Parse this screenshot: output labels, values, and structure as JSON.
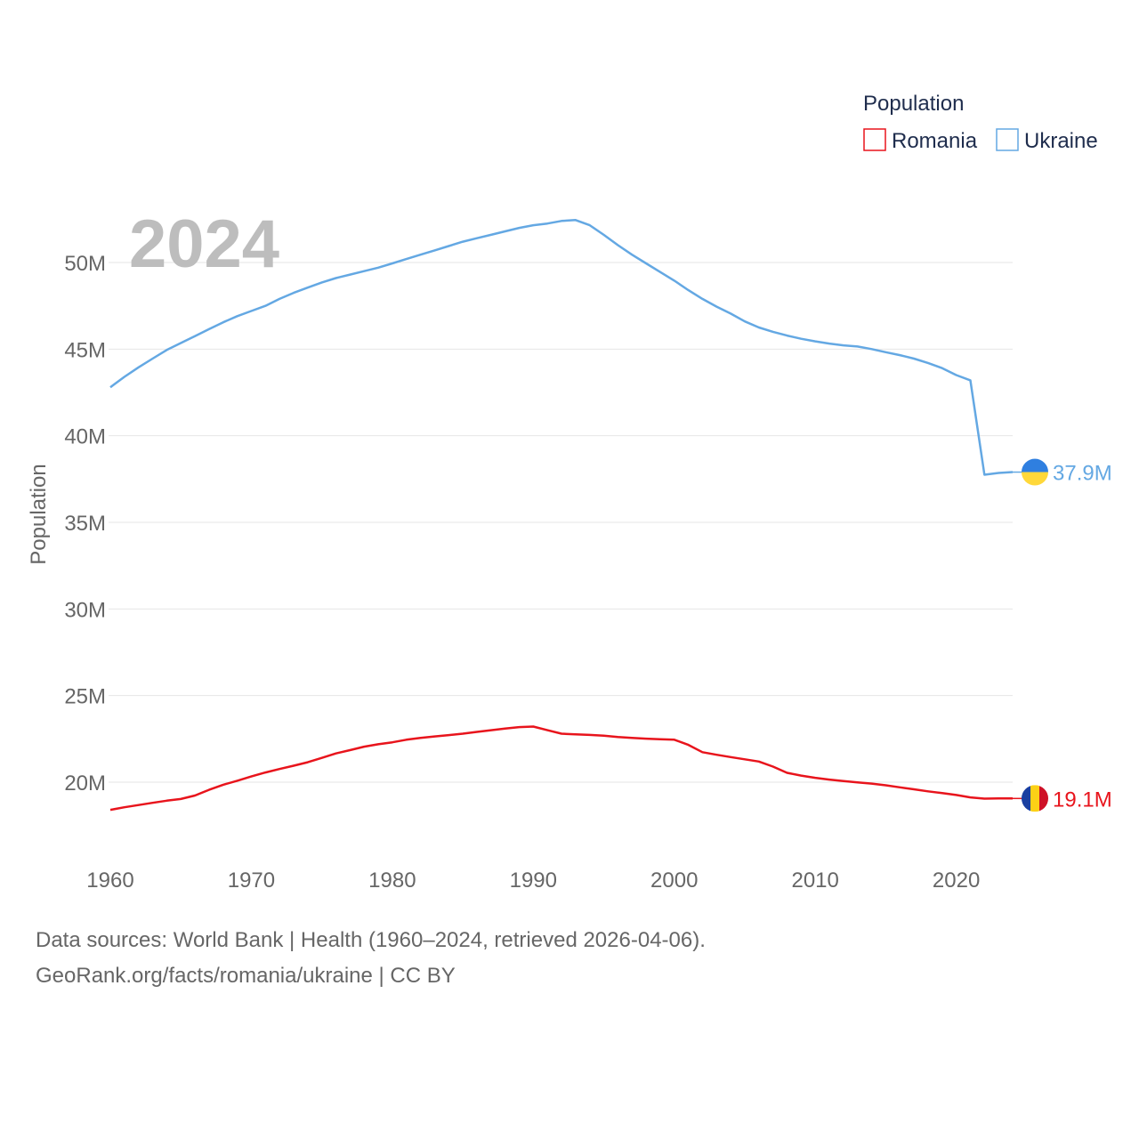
{
  "chart_data": {
    "type": "line",
    "title": "",
    "current_year": "2024",
    "xlabel": "",
    "ylabel": "Population",
    "xlim": [
      1960,
      2024
    ],
    "ylim": [
      17000000,
      53000000
    ],
    "x_ticks": [
      1960,
      1970,
      1980,
      1990,
      2000,
      2010,
      2020
    ],
    "x_tick_labels": [
      "1960",
      "1970",
      "1980",
      "1990",
      "2000",
      "2010",
      "2020"
    ],
    "y_ticks": [
      20000000,
      25000000,
      30000000,
      35000000,
      40000000,
      45000000,
      50000000
    ],
    "y_tick_labels": [
      "20M",
      "25M",
      "30M",
      "35M",
      "40M",
      "45M",
      "50M"
    ],
    "grid": true,
    "legend": {
      "title": "Population",
      "position": "top-right"
    },
    "x": [
      1960,
      1961,
      1962,
      1963,
      1964,
      1965,
      1966,
      1967,
      1968,
      1969,
      1970,
      1971,
      1972,
      1973,
      1974,
      1975,
      1976,
      1977,
      1978,
      1979,
      1980,
      1981,
      1982,
      1983,
      1984,
      1985,
      1986,
      1987,
      1988,
      1989,
      1990,
      1991,
      1992,
      1993,
      1994,
      1995,
      1996,
      1997,
      1998,
      1999,
      2000,
      2001,
      2002,
      2003,
      2004,
      2005,
      2006,
      2007,
      2008,
      2009,
      2010,
      2011,
      2012,
      2013,
      2014,
      2015,
      2016,
      2017,
      2018,
      2019,
      2020,
      2021,
      2022,
      2023,
      2024
    ],
    "series": [
      {
        "name": "Romania",
        "color": "#e8141c",
        "flag": "romania-flag",
        "end_label": "19.1M",
        "values": [
          18400000,
          18550000,
          18680000,
          18810000,
          18930000,
          19030000,
          19230000,
          19560000,
          19850000,
          20080000,
          20330000,
          20560000,
          20760000,
          20950000,
          21150000,
          21400000,
          21660000,
          21850000,
          22050000,
          22190000,
          22300000,
          22450000,
          22560000,
          22640000,
          22720000,
          22800000,
          22900000,
          23000000,
          23100000,
          23180000,
          23210000,
          23000000,
          22800000,
          22760000,
          22730000,
          22680000,
          22610000,
          22560000,
          22510000,
          22480000,
          22450000,
          22150000,
          21730000,
          21580000,
          21450000,
          21320000,
          21190000,
          20900000,
          20540000,
          20380000,
          20250000,
          20150000,
          20060000,
          19990000,
          19920000,
          19820000,
          19700000,
          19590000,
          19470000,
          19370000,
          19260000,
          19120000,
          19050000,
          19060000,
          19060000
        ]
      },
      {
        "name": "Ukraine",
        "color": "#64a8e3",
        "flag": "ukraine-flag",
        "end_label": "37.9M",
        "values": [
          42800000,
          43400000,
          43950000,
          44450000,
          44950000,
          45350000,
          45750000,
          46150000,
          46550000,
          46900000,
          47200000,
          47500000,
          47900000,
          48250000,
          48550000,
          48850000,
          49100000,
          49300000,
          49500000,
          49700000,
          49950000,
          50200000,
          50450000,
          50700000,
          50950000,
          51200000,
          51400000,
          51600000,
          51800000,
          52000000,
          52150000,
          52250000,
          52400000,
          52450000,
          52150000,
          51600000,
          51000000,
          50450000,
          49950000,
          49450000,
          48950000,
          48400000,
          47900000,
          47450000,
          47050000,
          46600000,
          46250000,
          46000000,
          45780000,
          45600000,
          45450000,
          45320000,
          45220000,
          45150000,
          45000000,
          44820000,
          44650000,
          44450000,
          44200000,
          43900000,
          43500000,
          43200000,
          37750000,
          37850000,
          37900000
        ]
      }
    ]
  },
  "footer": {
    "sources": "Data sources: World Bank | Health (1960–2024, retrieved 2026-04-06).",
    "credit": "GeoRank.org/facts/romania/ukraine | CC BY"
  }
}
